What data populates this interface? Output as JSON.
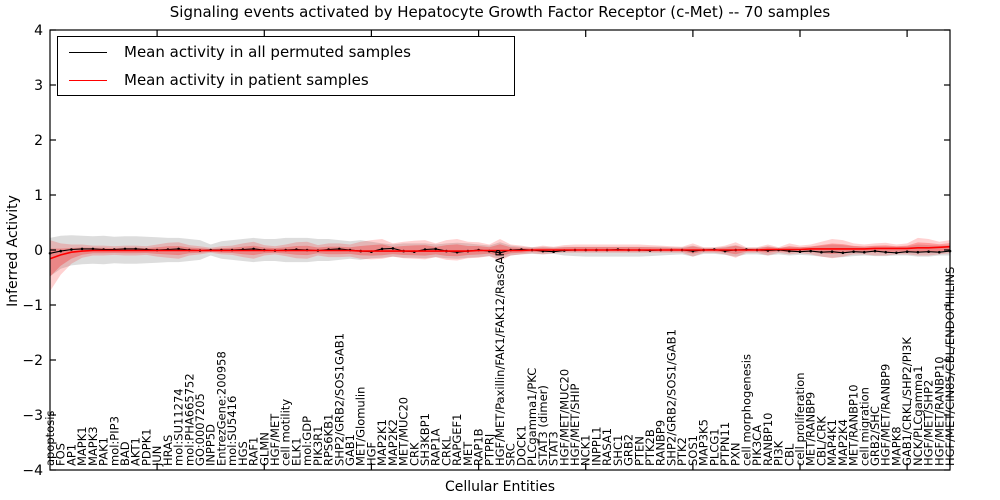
{
  "chart_data": {
    "type": "line",
    "title": "Signaling events activated by Hepatocyte Growth Factor Receptor (c-Met) -- 70 samples",
    "xlabel": "Cellular Entities",
    "ylabel": "Inferred Activity",
    "ylim": [
      -4,
      4
    ],
    "yticks": [
      -4,
      -3,
      -2,
      -1,
      0,
      1,
      2,
      3,
      4
    ],
    "xtick_every": 10,
    "legend_position": "upper left",
    "grid": false,
    "colors": {
      "permuted_line": "#000000",
      "patient_line": "#ff0000",
      "permuted_band": "rgba(150,150,150,0.32)",
      "patient_band_outer": "rgba(255,0,0,0.18)",
      "patient_band_inner": "rgba(255,0,0,0.26)"
    },
    "categories": [
      "apoptosis",
      "FOS",
      "AP1",
      "MAPK1",
      "MAPK3",
      "PAK1",
      "mol:PIP3",
      "BAD",
      "AKT1",
      "PDPK1",
      "JUN",
      "HRAS",
      "mol:SU11274",
      "mol:PHA665752",
      "GO:0007205",
      "INPP5D",
      "EntrezGene:200958",
      "mol:SU5416",
      "HGS",
      "RAF1",
      "GLMN",
      "HGF/MET",
      "cell motility",
      "ELK1",
      "mol:GDP",
      "PIK3R1",
      "RPS6KB1",
      "SHP2/GRB2/SOS1GAB1",
      "GAB1",
      "MET/Glomulin",
      "HGF",
      "MAP2K1",
      "MAP2K2",
      "MET/MUC20",
      "CRK",
      "SH3KBP1",
      "RAP1A",
      "CRKL",
      "RAPGEF1",
      "MET",
      "RAP1B",
      "PTPRJ",
      "HGF/MET/Paxillin/FAK1/FAK12/RasGAP",
      "SRC",
      "DOCK1",
      "PLCgamma1/PKC",
      "STAT3 (dimer)",
      "STAT3",
      "HGF/MET/MUC20",
      "HGF/MET/SHIP",
      "NCK1",
      "INPPL1",
      "RASA1",
      "SHC1",
      "GRB2",
      "PTEN",
      "PTK2B",
      "RANBP9",
      "SHP2/GRB2/SOS1/GAB1",
      "PTK2",
      "SOS1",
      "MAP3K5",
      "PLCG1",
      "PTPN11",
      "PXN",
      "cell morphogenesis",
      "PIK3CA",
      "RANBP10",
      "PI3K",
      "CBL",
      "cell proliferation",
      "MET/RANBP9",
      "CBL/CRK",
      "MAP4K1",
      "MAP2K4",
      "MET/RANBP10",
      "cell migration",
      "GRB2/SHC",
      "HGF/MET/RANBP9",
      "MAPK8",
      "GAB1/CRKL/SHP2/PI3K",
      "NCK/PLCgamma1",
      "HGF/MET/SHP2",
      "HGF/MET/RANBP10",
      "HGF/MET/CIN85/CBL/ENDOPHILINS"
    ],
    "series": [
      {
        "name": "Mean activity in all permuted samples",
        "color": "#000000",
        "values": [
          -0.06,
          -0.02,
          0.01,
          0.02,
          0.02,
          0.01,
          0.01,
          0.02,
          0.02,
          0.01,
          0,
          0.01,
          0.02,
          0,
          -0.01,
          0,
          0,
          0,
          0.01,
          0.02,
          0,
          -0.01,
          0,
          0.01,
          0,
          -0.01,
          0.01,
          0.02,
          0,
          -0.02,
          -0.03,
          0.02,
          0.03,
          -0.02,
          -0.03,
          0.01,
          0.02,
          -0.02,
          -0.04,
          -0.02,
          0,
          -0.02,
          -0.05,
          0,
          0.01,
          0,
          -0.02,
          -0.03,
          -0.01,
          0,
          0,
          0,
          0,
          0.01,
          0,
          0,
          -0.01,
          0,
          0,
          0,
          -0.02,
          0,
          0.01,
          -0.02,
          0,
          0.01,
          0,
          -0.01,
          0,
          -0.02,
          -0.03,
          -0.02,
          -0.04,
          -0.03,
          -0.05,
          -0.03,
          -0.04,
          -0.02,
          -0.04,
          -0.05,
          -0.03,
          -0.04,
          -0.03,
          -0.04,
          -0.02
        ]
      },
      {
        "name": "Mean activity in patient samples",
        "color": "#ff0000",
        "values": [
          -0.16,
          -0.09,
          -0.04,
          -0.02,
          -0.01,
          -0.01,
          -0.01,
          -0.01,
          -0.01,
          -0.01,
          -0.01,
          -0.01,
          -0.01,
          -0.01,
          -0.01,
          -0.01,
          -0.01,
          -0.01,
          -0.01,
          -0.01,
          -0.01,
          -0.01,
          -0.01,
          -0.01,
          -0.01,
          -0.01,
          -0.01,
          -0.01,
          -0.01,
          -0.02,
          -0.02,
          -0.02,
          -0.02,
          -0.02,
          -0.02,
          -0.02,
          -0.02,
          -0.02,
          -0.02,
          -0.02,
          -0.01,
          -0.01,
          -0.01,
          -0.01,
          -0.01,
          0,
          0,
          0,
          0,
          0,
          0,
          0,
          0,
          0,
          0,
          0,
          0,
          0,
          0,
          0,
          0,
          0,
          0,
          0,
          0,
          0,
          0,
          0.01,
          0.01,
          0.01,
          0.01,
          0.02,
          0.02,
          0.02,
          0.02,
          0.02,
          0.02,
          0.03,
          0.03,
          0.03,
          0.03,
          0.04,
          0.04,
          0.05,
          0.06
        ]
      }
    ],
    "bands": [
      {
        "name": "permuted-std-band",
        "upper": [
          0.22,
          0.26,
          0.27,
          0.26,
          0.25,
          0.26,
          0.24,
          0.25,
          0.25,
          0.24,
          0.23,
          0.22,
          0.22,
          0.2,
          0.18,
          0.1,
          0.16,
          0.18,
          0.2,
          0.22,
          0.2,
          0.2,
          0.22,
          0.22,
          0.22,
          0.2,
          0.2,
          0.18,
          0.16,
          0.18,
          0.15,
          0.12,
          0.1,
          0.12,
          0.12,
          0.12,
          0.1,
          0.12,
          0.13,
          0.12,
          0.1,
          0.08,
          0.14,
          0.08,
          0.06,
          0.05,
          0.06,
          0.05,
          0.06,
          0.06,
          0.06,
          0.06,
          0.06,
          0.06,
          0.06,
          0.06,
          0.06,
          0.06,
          0.05,
          0.05,
          0.08,
          0.04,
          0.04,
          0.06,
          0.09,
          0.04,
          0.04,
          0.07,
          0.04,
          0.06,
          0.05,
          0.06,
          0.08,
          0.1,
          0.09,
          0.07,
          0.06,
          0.07,
          0.07,
          0.06,
          0.07,
          0.1,
          0.09,
          0.08,
          0.09
        ],
        "lower": [
          -0.48,
          -0.34,
          -0.28,
          -0.26,
          -0.25,
          -0.26,
          -0.24,
          -0.25,
          -0.25,
          -0.24,
          -0.23,
          -0.22,
          -0.22,
          -0.2,
          -0.18,
          -0.1,
          -0.16,
          -0.18,
          -0.2,
          -0.22,
          -0.2,
          -0.2,
          -0.22,
          -0.22,
          -0.22,
          -0.2,
          -0.2,
          -0.18,
          -0.16,
          -0.18,
          -0.15,
          -0.14,
          -0.12,
          -0.14,
          -0.14,
          -0.15,
          -0.13,
          -0.15,
          -0.16,
          -0.14,
          -0.13,
          -0.11,
          -0.16,
          -0.1,
          -0.08,
          -0.07,
          -0.08,
          -0.07,
          -0.1,
          -0.11,
          -0.12,
          -0.12,
          -0.12,
          -0.12,
          -0.12,
          -0.12,
          -0.11,
          -0.1,
          -0.09,
          -0.08,
          -0.12,
          -0.07,
          -0.07,
          -0.09,
          -0.12,
          -0.08,
          -0.08,
          -0.1,
          -0.08,
          -0.1,
          -0.09,
          -0.1,
          -0.12,
          -0.14,
          -0.13,
          -0.11,
          -0.1,
          -0.11,
          -0.11,
          -0.1,
          -0.1,
          -0.12,
          -0.12,
          -0.1,
          -0.1
        ]
      },
      {
        "name": "patient-std-band",
        "upper": [
          0.18,
          0.12,
          0.1,
          0.1,
          0.08,
          0.08,
          0.07,
          0.08,
          0.08,
          0.07,
          0.1,
          0.13,
          0.14,
          0.09,
          0.07,
          0.04,
          0.07,
          0.08,
          0.12,
          0.15,
          0.09,
          0.07,
          0.1,
          0.14,
          0.15,
          0.09,
          0.12,
          0.12,
          0.1,
          0.15,
          0.18,
          0.2,
          0.12,
          0.15,
          0.17,
          0.18,
          0.12,
          0.18,
          0.2,
          0.15,
          0.14,
          0.1,
          0.2,
          0.1,
          0.08,
          0.05,
          0.08,
          0.06,
          0.09,
          0.1,
          0.1,
          0.1,
          0.1,
          0.1,
          0.1,
          0.1,
          0.09,
          0.08,
          0.07,
          0.06,
          0.12,
          0.05,
          0.05,
          0.08,
          0.14,
          0.05,
          0.05,
          0.1,
          0.05,
          0.12,
          0.08,
          0.1,
          0.15,
          0.2,
          0.18,
          0.12,
          0.1,
          0.12,
          0.13,
          0.1,
          0.12,
          0.22,
          0.2,
          0.15,
          0.18
        ],
        "lower": [
          -0.75,
          -0.45,
          -0.25,
          -0.14,
          -0.1,
          -0.1,
          -0.09,
          -0.1,
          -0.1,
          -0.09,
          -0.12,
          -0.14,
          -0.16,
          -0.1,
          -0.08,
          -0.05,
          -0.08,
          -0.09,
          -0.13,
          -0.16,
          -0.1,
          -0.08,
          -0.11,
          -0.15,
          -0.16,
          -0.1,
          -0.13,
          -0.13,
          -0.12,
          -0.16,
          -0.17,
          -0.16,
          -0.12,
          -0.15,
          -0.16,
          -0.17,
          -0.13,
          -0.18,
          -0.19,
          -0.15,
          -0.14,
          -0.11,
          -0.2,
          -0.1,
          -0.08,
          -0.06,
          -0.08,
          -0.06,
          -0.05,
          -0.05,
          -0.05,
          -0.05,
          -0.05,
          -0.05,
          -0.05,
          -0.05,
          -0.05,
          -0.05,
          -0.05,
          -0.05,
          -0.12,
          -0.05,
          -0.05,
          -0.08,
          -0.14,
          -0.05,
          -0.05,
          -0.1,
          -0.05,
          -0.08,
          -0.06,
          -0.08,
          -0.12,
          -0.15,
          -0.12,
          -0.08,
          -0.08,
          -0.1,
          -0.1,
          -0.08,
          -0.08,
          -0.1,
          -0.1,
          -0.08,
          -0.06
        ]
      }
    ]
  },
  "legend": {
    "items": [
      {
        "label": "Mean activity in all permuted samples",
        "color": "#000000"
      },
      {
        "label": "Mean activity in patient samples",
        "color": "#ff0000"
      }
    ]
  }
}
